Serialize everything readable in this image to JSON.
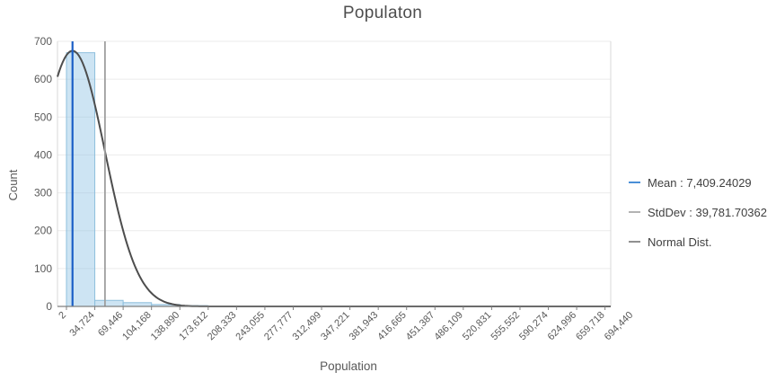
{
  "title": "Populaton",
  "y_axis": {
    "label": "Count",
    "ticks": [
      0,
      100,
      200,
      300,
      400,
      500,
      600,
      700
    ]
  },
  "x_axis": {
    "label": "Population",
    "tick_labels": [
      "2",
      "34,724",
      "69,446",
      "104,168",
      "138,890",
      "173,612",
      "208,333",
      "243,055",
      "277,777",
      "312,499",
      "347,221",
      "381,943",
      "416,665",
      "451,387",
      "486,109",
      "520,831",
      "555,552",
      "590,274",
      "624,996",
      "659,718",
      "694,440"
    ]
  },
  "legend": [
    {
      "label": "Mean : 7,409.24029",
      "color": "#4a8fd7"
    },
    {
      "label": "StdDev : 39,781.70362",
      "color": "#b3b3b3"
    },
    {
      "label": "Normal Dist.",
      "color": "#909090"
    }
  ],
  "chart_data": {
    "type": "bar",
    "subtype": "histogram",
    "title": "Populaton",
    "xlabel": "Population",
    "ylabel": "Count",
    "ylim": [
      0,
      700
    ],
    "grid": "horizontal",
    "legend_position": "right",
    "bin_edges": [
      2,
      34724,
      69446,
      104168,
      138890,
      173612,
      208333,
      243055,
      277777,
      312499,
      347221,
      381943,
      416665,
      451387,
      486109,
      520831,
      555552,
      590274,
      624996,
      659718,
      694440
    ],
    "bin_counts": [
      670,
      16,
      10,
      5,
      2,
      0,
      0,
      0,
      0,
      0,
      0,
      0,
      0,
      0,
      0,
      0,
      0,
      0,
      0,
      0
    ],
    "bin_width": 34721.9,
    "mean": 7409.24029,
    "stddev": 39781.70362,
    "stddev_line_value": 47190.94391,
    "normal_curve_peak": 675,
    "colors": {
      "bar_fill": "rgba(144,195,229,0.45)",
      "bar_stroke": "#8ebfdd",
      "mean_line": "#1c5fc6",
      "stddev_line": "#9f9f9f",
      "curve": "#4d4d4d",
      "grid": "#ebebeb",
      "axis": "#7f7f7f",
      "border": "#d9d9d9",
      "tick_text": "#595959",
      "title_text": "#4e4e4e"
    }
  }
}
